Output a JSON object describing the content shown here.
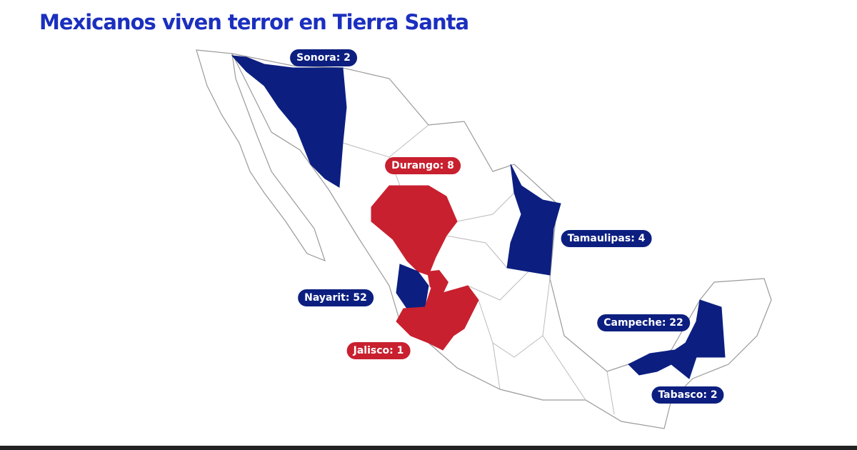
{
  "title": "Mexicanos viven terror en Tierra Santa",
  "colors": {
    "title": "#1b2fbf",
    "blue": "#0c1f80",
    "red": "#c8202f",
    "outline": "#9a9a9a"
  },
  "states": [
    {
      "id": "sonora",
      "label": "Sonora: 2",
      "color": "blue"
    },
    {
      "id": "durango",
      "label": "Durango: 8",
      "color": "red"
    },
    {
      "id": "tamaulipas",
      "label": "Tamaulipas: 4",
      "color": "blue"
    },
    {
      "id": "nayarit",
      "label": "Nayarit: 52",
      "color": "blue"
    },
    {
      "id": "jalisco",
      "label": "Jalisco: 1",
      "color": "red"
    },
    {
      "id": "campeche",
      "label": "Campeche: 22",
      "color": "blue"
    },
    {
      "id": "tabasco",
      "label": "Tabasco: 2",
      "color": "blue"
    }
  ]
}
